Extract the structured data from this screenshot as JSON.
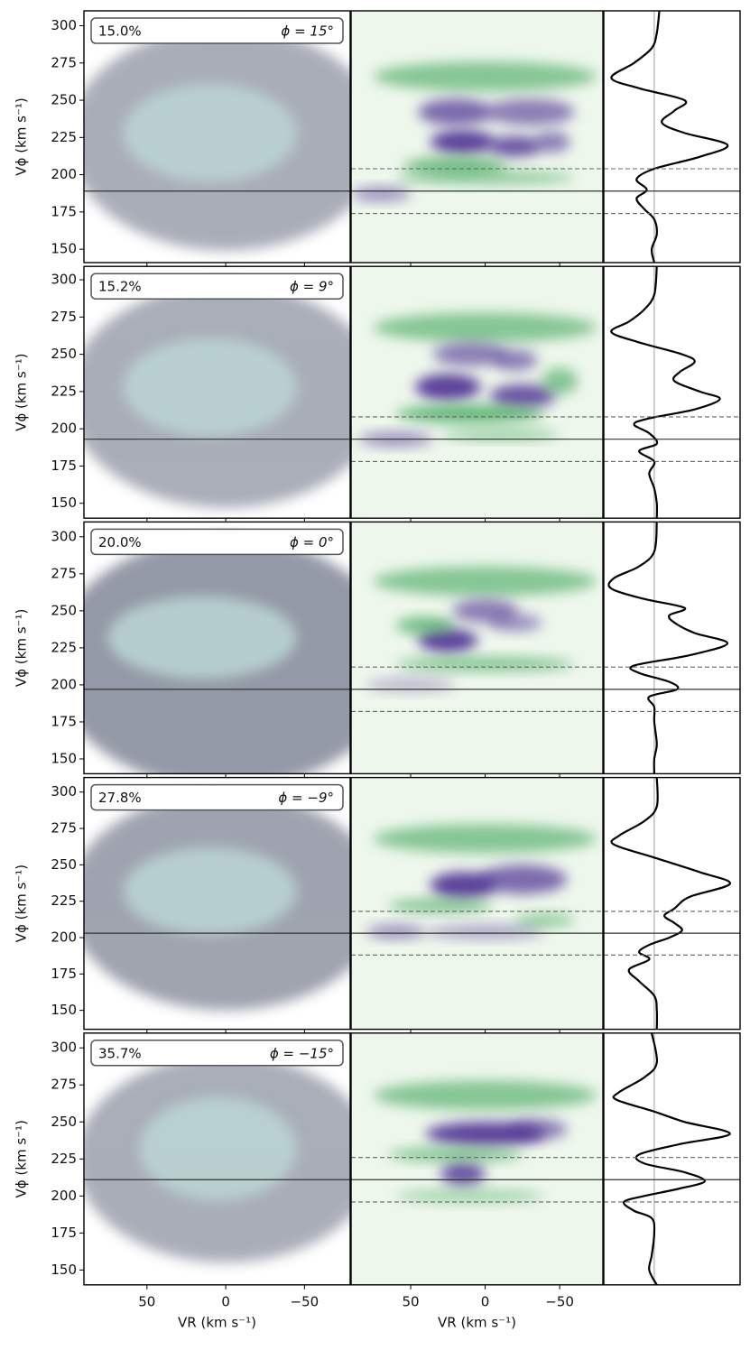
{
  "chart_data": [
    {
      "type": "velocity",
      "label": "15.0%",
      "phi_label": "ϕ = 15°",
      "ylabel": "Vϕ (km s⁻¹)",
      "ylim": [
        141,
        310
      ],
      "yticks": [
        150,
        175,
        200,
        225,
        250,
        275,
        300
      ],
      "xlim": [
        90,
        -79
      ],
      "xticks": [
        50,
        0,
        {
          "value": -50,
          "label": "−50"
        }
      ],
      "profile_xlim": [
        -1,
        1.7
      ],
      "solid": 189,
      "dashed": [
        174,
        204
      ],
      "hist": [
        {
          "vr": 0,
          "vphi": 224,
          "rx": 100,
          "ry": 75,
          "level": 0.25
        },
        {
          "vr": 10,
          "vphi": 228,
          "rx": 55,
          "ry": 33,
          "level": 0.85
        }
      ],
      "wavelet": [
        {
          "vr": 0,
          "vphi": 266,
          "rx": 75,
          "ry": 10,
          "amp": -0.6
        },
        {
          "vr": 20,
          "vphi": 242,
          "rx": 25,
          "ry": 9,
          "amp": 0.7
        },
        {
          "vr": -30,
          "vphi": 242,
          "rx": 30,
          "ry": 9,
          "amp": 0.6
        },
        {
          "vr": 15,
          "vphi": 222,
          "rx": 22,
          "ry": 8,
          "amp": 0.9
        },
        {
          "vr": -20,
          "vphi": 219,
          "rx": 18,
          "ry": 7,
          "amp": 0.8
        },
        {
          "vr": -45,
          "vphi": 222,
          "rx": 12,
          "ry": 7,
          "amp": 0.6
        },
        {
          "vr": 20,
          "vphi": 206,
          "rx": 35,
          "ry": 6,
          "amp": -0.7
        },
        {
          "vr": 0,
          "vphi": 198,
          "rx": 60,
          "ry": 5,
          "amp": -0.5
        },
        {
          "vr": 70,
          "vphi": 187,
          "rx": 20,
          "ry": 5,
          "amp": 0.5
        }
      ],
      "profile": {
        "y": [
          310,
          295,
          285,
          275,
          265,
          258,
          250,
          243,
          235,
          228,
          220,
          212,
          204,
          197,
          190,
          184,
          177,
          170,
          160,
          150,
          141
        ],
        "values": [
          0.1,
          0.05,
          -0.05,
          -0.4,
          -0.85,
          -0.3,
          0.6,
          0.4,
          0.15,
          0.6,
          1.45,
          0.9,
          0,
          -0.35,
          -0.15,
          -0.35,
          -0.2,
          0,
          0.05,
          -0.05,
          0
        ]
      }
    },
    {
      "type": "velocity",
      "label": "15.2%",
      "phi_label": "ϕ = 9°",
      "ylabel": "Vϕ (km s⁻¹)",
      "ylim": [
        140,
        309
      ],
      "yticks": [
        150,
        175,
        200,
        225,
        250,
        275,
        300
      ],
      "xlim": [
        90,
        -79
      ],
      "xticks": [
        50,
        0,
        {
          "value": -50,
          "label": "−50"
        }
      ],
      "profile_xlim": [
        -1,
        1.7
      ],
      "solid": 193,
      "dashed": [
        178,
        208
      ],
      "hist": [
        {
          "vr": 0,
          "vphi": 222,
          "rx": 100,
          "ry": 75,
          "level": 0.25
        },
        {
          "vr": 10,
          "vphi": 228,
          "rx": 55,
          "ry": 33,
          "level": 0.85
        }
      ],
      "wavelet": [
        {
          "vr": 0,
          "vphi": 268,
          "rx": 75,
          "ry": 10,
          "amp": -0.6
        },
        {
          "vr": 10,
          "vphi": 250,
          "rx": 25,
          "ry": 8,
          "amp": 0.6
        },
        {
          "vr": -20,
          "vphi": 246,
          "rx": 15,
          "ry": 7,
          "amp": 0.6
        },
        {
          "vr": 25,
          "vphi": 228,
          "rx": 22,
          "ry": 9,
          "amp": 0.9
        },
        {
          "vr": -25,
          "vphi": 222,
          "rx": 22,
          "ry": 8,
          "amp": 0.8
        },
        {
          "vr": -50,
          "vphi": 232,
          "rx": 12,
          "ry": 9,
          "amp": -0.6
        },
        {
          "vr": 10,
          "vphi": 210,
          "rx": 50,
          "ry": 6,
          "amp": -0.8
        },
        {
          "vr": 60,
          "vphi": 193,
          "rx": 25,
          "ry": 5,
          "amp": 0.5
        },
        {
          "vr": -10,
          "vphi": 196,
          "rx": 40,
          "ry": 4,
          "amp": -0.5
        }
      ],
      "profile": {
        "y": [
          309,
          290,
          280,
          272,
          265,
          258,
          250,
          245,
          238,
          232,
          225,
          220,
          213,
          207,
          203,
          197,
          190,
          185,
          178,
          170,
          160,
          150,
          140
        ],
        "values": [
          0.05,
          0,
          -0.2,
          -0.5,
          -0.85,
          -0.3,
          0.55,
          0.8,
          0.5,
          0.4,
          0.9,
          1.3,
          0.8,
          -0.1,
          -0.4,
          -0.1,
          0.05,
          -0.3,
          0,
          -0.1,
          0,
          0.05,
          0.05
        ]
      }
    },
    {
      "type": "velocity",
      "label": "20.0%",
      "phi_label": "ϕ = 0°",
      "ylabel": "Vϕ (km s⁻¹)",
      "ylim": [
        140,
        310
      ],
      "yticks": [
        150,
        175,
        200,
        225,
        250,
        275,
        300
      ],
      "xlim": [
        90,
        -79
      ],
      "xticks": [
        50,
        0,
        {
          "value": -50,
          "label": "−50"
        }
      ],
      "profile_xlim": [
        -1,
        1.7
      ],
      "solid": 197,
      "dashed": [
        182,
        212
      ],
      "hist": [
        {
          "vr": 0,
          "vphi": 215,
          "rx": 110,
          "ry": 85,
          "level": 0.35
        },
        {
          "vr": 15,
          "vphi": 232,
          "rx": 60,
          "ry": 28,
          "level": 0.85
        }
      ],
      "wavelet": [
        {
          "vr": 0,
          "vphi": 270,
          "rx": 75,
          "ry": 10,
          "amp": -0.6
        },
        {
          "vr": 0,
          "vphi": 250,
          "rx": 22,
          "ry": 8,
          "amp": 0.6
        },
        {
          "vr": 25,
          "vphi": 230,
          "rx": 20,
          "ry": 8,
          "amp": 0.9
        },
        {
          "vr": 40,
          "vphi": 240,
          "rx": 20,
          "ry": 6,
          "amp": -0.7
        },
        {
          "vr": -20,
          "vphi": 242,
          "rx": 18,
          "ry": 6,
          "amp": 0.5
        },
        {
          "vr": 0,
          "vphi": 214,
          "rx": 60,
          "ry": 5,
          "amp": -0.6
        },
        {
          "vr": 50,
          "vphi": 200,
          "rx": 30,
          "ry": 5,
          "amp": 0.3
        }
      ],
      "profile": {
        "y": [
          310,
          290,
          280,
          272,
          265,
          258,
          252,
          247,
          242,
          235,
          228,
          220,
          213,
          208,
          202,
          197,
          192,
          185,
          175,
          160,
          150,
          140
        ],
        "values": [
          0.05,
          0,
          -0.3,
          -0.8,
          -0.85,
          -0.2,
          0.6,
          0.3,
          0.4,
          0.8,
          1.45,
          0.7,
          -0.4,
          -0.3,
          0.3,
          0.45,
          -0.1,
          0,
          0,
          0.05,
          0,
          0
        ]
      }
    },
    {
      "type": "velocity",
      "label": "27.8%",
      "phi_label": "ϕ = −9°",
      "ylabel": "Vϕ (km s⁻¹)",
      "ylim": [
        137,
        310
      ],
      "yticks": [
        150,
        175,
        200,
        225,
        250,
        275,
        300
      ],
      "xlim": [
        90,
        -79
      ],
      "xticks": [
        50,
        0,
        {
          "value": -50,
          "label": "−50"
        }
      ],
      "profile_xlim": [
        -1,
        1.7
      ],
      "solid": 203,
      "dashed": [
        188,
        218
      ],
      "hist": [
        {
          "vr": 0,
          "vphi": 225,
          "rx": 100,
          "ry": 75,
          "level": 0.3
        },
        {
          "vr": 10,
          "vphi": 232,
          "rx": 55,
          "ry": 30,
          "level": 0.85
        }
      ],
      "wavelet": [
        {
          "vr": 0,
          "vphi": 268,
          "rx": 75,
          "ry": 10,
          "amp": -0.6
        },
        {
          "vr": 15,
          "vphi": 236,
          "rx": 22,
          "ry": 9,
          "amp": 0.9
        },
        {
          "vr": -25,
          "vphi": 240,
          "rx": 30,
          "ry": 10,
          "amp": 0.7
        },
        {
          "vr": 30,
          "vphi": 222,
          "rx": 35,
          "ry": 5,
          "amp": -0.6
        },
        {
          "vr": 60,
          "vphi": 204,
          "rx": 20,
          "ry": 5,
          "amp": 0.5
        },
        {
          "vr": 0,
          "vphi": 204,
          "rx": 40,
          "ry": 5,
          "amp": 0.4
        },
        {
          "vr": -40,
          "vphi": 212,
          "rx": 20,
          "ry": 5,
          "amp": -0.5
        }
      ],
      "profile": {
        "y": [
          310,
          290,
          280,
          270,
          264,
          255,
          245,
          237,
          228,
          220,
          215,
          210,
          205,
          200,
          195,
          190,
          185,
          178,
          170,
          160,
          150,
          137
        ],
        "values": [
          0.05,
          0.05,
          -0.2,
          -0.7,
          -0.8,
          0,
          0.9,
          1.5,
          0.7,
          0.4,
          0.2,
          0.4,
          0.55,
          0.3,
          -0.1,
          -0.3,
          -0.1,
          -0.5,
          -0.3,
          0,
          0.05,
          0.05
        ]
      }
    },
    {
      "type": "velocity",
      "label": "35.7%",
      "phi_label": "ϕ = −15°",
      "ylabel": "Vϕ (km s⁻¹)",
      "ylim": [
        140,
        310
      ],
      "yticks": [
        150,
        175,
        200,
        225,
        250,
        275,
        300
      ],
      "xlim": [
        90,
        -79
      ],
      "xticks": [
        50,
        0,
        {
          "value": -50,
          "label": "−50"
        }
      ],
      "profile_xlim": [
        -1,
        1.7
      ],
      "solid": 211,
      "dashed": [
        196,
        226
      ],
      "hist": [
        {
          "vr": 0,
          "vphi": 225,
          "rx": 95,
          "ry": 70,
          "level": 0.25
        },
        {
          "vr": 5,
          "vphi": 232,
          "rx": 50,
          "ry": 35,
          "level": 0.85
        }
      ],
      "wavelet": [
        {
          "vr": 0,
          "vphi": 268,
          "rx": 75,
          "ry": 10,
          "amp": -0.6
        },
        {
          "vr": 0,
          "vphi": 242,
          "rx": 40,
          "ry": 8,
          "amp": 0.9
        },
        {
          "vr": -35,
          "vphi": 245,
          "rx": 20,
          "ry": 7,
          "amp": 0.6
        },
        {
          "vr": 15,
          "vphi": 215,
          "rx": 15,
          "ry": 8,
          "amp": 0.8
        },
        {
          "vr": 20,
          "vphi": 228,
          "rx": 45,
          "ry": 5,
          "amp": -0.6
        },
        {
          "vr": 10,
          "vphi": 200,
          "rx": 50,
          "ry": 5,
          "amp": -0.4
        }
      ],
      "profile": {
        "y": [
          310,
          290,
          280,
          270,
          265,
          257,
          250,
          242,
          235,
          228,
          222,
          216,
          210,
          205,
          200,
          196,
          190,
          185,
          175,
          160,
          150,
          140
        ],
        "values": [
          -0.05,
          0.05,
          -0.2,
          -0.7,
          -0.75,
          0,
          0.6,
          1.5,
          0.5,
          -0.3,
          -0.2,
          0.6,
          1.0,
          0.5,
          -0.2,
          -0.6,
          -0.4,
          -0.05,
          0,
          -0.05,
          -0.1,
          0.05
        ]
      },
      "xlabel": "VR (km s⁻¹)"
    }
  ]
}
